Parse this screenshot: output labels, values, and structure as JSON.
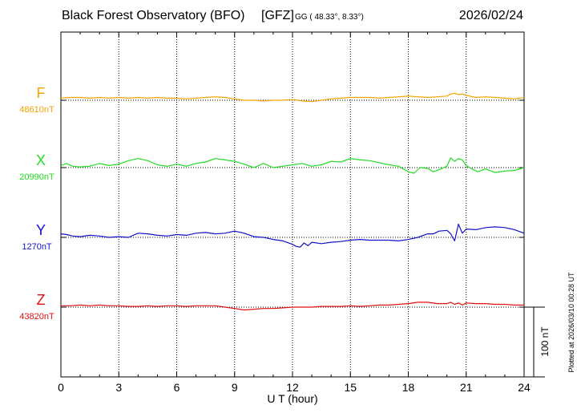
{
  "header": {
    "title": "Black Forest Observatory (BFO)",
    "source": "[GFZ]",
    "coords": "GG ( 48.33°,   8.33°)",
    "date": "2026/02/24"
  },
  "footer": {
    "plotted": "Plotted at 2026/03/10 00:28 UT",
    "scale_label": "100 nT"
  },
  "chart_data": {
    "type": "line",
    "xlabel": "U T (hour)",
    "xlim": [
      0,
      24
    ],
    "xticks": [
      "0",
      "3",
      "6",
      "9",
      "12",
      "15",
      "18",
      "21",
      "24"
    ],
    "scale_bar_nT": 100,
    "grid": true,
    "series": [
      {
        "name": "F",
        "baseline_label": "48610nT",
        "baseline": 48610,
        "color": "#f5a300",
        "x": [
          0,
          0.5,
          1,
          1.5,
          2,
          2.5,
          3,
          3.5,
          4,
          4.5,
          5,
          5.5,
          6,
          6.5,
          7,
          7.5,
          8,
          8.5,
          9,
          9.5,
          10,
          10.5,
          11,
          11.5,
          12,
          12.5,
          13,
          13.5,
          14,
          14.5,
          15,
          15.5,
          16,
          16.5,
          17,
          17.5,
          18,
          18.5,
          19,
          19.5,
          20,
          20.2,
          20.4,
          20.6,
          20.8,
          21,
          21.5,
          22,
          22.5,
          23,
          23.5,
          24
        ],
        "y": [
          48613,
          48614,
          48614,
          48613,
          48614,
          48613,
          48614,
          48613,
          48614,
          48613,
          48614,
          48613,
          48613,
          48612,
          48613,
          48614,
          48615,
          48614,
          48612,
          48610,
          48610,
          48609,
          48610,
          48610,
          48611,
          48609,
          48608,
          48610,
          48612,
          48613,
          48614,
          48614,
          48614,
          48613,
          48614,
          48615,
          48616,
          48615,
          48614,
          48615,
          48616,
          48619,
          48620,
          48618,
          48619,
          48617,
          48614,
          48615,
          48614,
          48613,
          48612,
          48614
        ]
      },
      {
        "name": "X",
        "baseline_label": "20990nT",
        "baseline": 20990,
        "color": "#22dd22",
        "x": [
          0,
          0.3,
          0.6,
          1,
          1.5,
          2,
          2.5,
          3,
          3.5,
          4,
          4.5,
          5,
          5.5,
          6,
          6.5,
          7,
          7.5,
          8,
          8.5,
          9,
          9.5,
          10,
          10.5,
          11,
          11.5,
          12,
          12.5,
          13,
          13.5,
          14,
          14.5,
          15,
          15.5,
          16,
          16.5,
          17,
          17.5,
          18,
          18.3,
          18.6,
          19,
          19.3,
          19.6,
          20,
          20.2,
          20.4,
          20.6,
          20.8,
          21,
          21.3,
          21.6,
          22,
          22.5,
          23,
          23.5,
          24
        ],
        "y": [
          20993,
          20996,
          20992,
          20991,
          20992,
          20996,
          20993,
          20995,
          21000,
          21003,
          21000,
          20994,
          20992,
          20995,
          20992,
          20996,
          20998,
          21003,
          21001,
          20999,
          20995,
          20990,
          20996,
          20990,
          20992,
          20994,
          20996,
          20992,
          20994,
          20999,
          20998,
          21003,
          21001,
          21000,
          20997,
          20994,
          20992,
          20984,
          20982,
          20990,
          20989,
          20984,
          20987,
          20992,
          21004,
          20999,
          21003,
          21001,
          20993,
          20988,
          20984,
          20988,
          20983,
          20985,
          20986,
          20990
        ]
      },
      {
        "name": "Y",
        "baseline_label": "1270nT",
        "baseline": 1270,
        "color": "#1111cc",
        "x": [
          0,
          0.3,
          0.6,
          1,
          1.5,
          2,
          2.5,
          3,
          3.5,
          4,
          4.5,
          5,
          5.5,
          6,
          6.5,
          7,
          7.5,
          8,
          8.5,
          9,
          9.5,
          10,
          10.5,
          11,
          11.5,
          12,
          12.2,
          12.4,
          12.6,
          12.8,
          13,
          13.5,
          14,
          14.5,
          15,
          15.5,
          16,
          16.5,
          17,
          17.5,
          18,
          18.5,
          19,
          19.3,
          19.6,
          20,
          20.2,
          20.4,
          20.6,
          20.8,
          21,
          21.5,
          22,
          22.5,
          23,
          23.5,
          24
        ],
        "y": [
          1275,
          1274,
          1272,
          1271,
          1273,
          1272,
          1270,
          1271,
          1270,
          1276,
          1275,
          1273,
          1272,
          1274,
          1273,
          1276,
          1277,
          1275,
          1276,
          1279,
          1276,
          1271,
          1270,
          1267,
          1265,
          1260,
          1257,
          1256,
          1262,
          1258,
          1263,
          1261,
          1263,
          1264,
          1266,
          1267,
          1266,
          1266,
          1266,
          1265,
          1267,
          1270,
          1275,
          1275,
          1279,
          1280,
          1275,
          1265,
          1289,
          1276,
          1282,
          1281,
          1284,
          1285,
          1284,
          1281,
          1276
        ]
      },
      {
        "name": "Z",
        "baseline_label": "43820nT",
        "baseline": 43820,
        "color": "#e01010",
        "x": [
          0,
          0.5,
          1,
          1.5,
          2,
          2.5,
          3,
          3.5,
          4,
          4.5,
          5,
          5.5,
          6,
          6.5,
          7,
          7.5,
          8,
          8.5,
          9,
          9.5,
          10,
          10.5,
          11,
          11.5,
          12,
          12.5,
          13,
          13.5,
          14,
          14.5,
          15,
          15.5,
          16,
          16.5,
          17,
          17.5,
          18,
          18.5,
          19,
          19.5,
          20,
          20.2,
          20.4,
          20.6,
          20.8,
          21,
          21.5,
          22,
          22.5,
          23,
          23.5,
          24
        ],
        "y": [
          43822,
          43822,
          43823,
          43822,
          43823,
          43822,
          43822,
          43821,
          43821,
          43822,
          43821,
          43822,
          43822,
          43821,
          43822,
          43822,
          43822,
          43820,
          43818,
          43816,
          43817,
          43818,
          43818,
          43819,
          43820,
          43820,
          43820,
          43821,
          43821,
          43821,
          43822,
          43821,
          43822,
          43823,
          43823,
          43824,
          43825,
          43827,
          43827,
          43825,
          43825,
          43827,
          43824,
          43826,
          43823,
          43826,
          43825,
          43825,
          43824,
          43824,
          43823,
          43823
        ]
      }
    ]
  }
}
